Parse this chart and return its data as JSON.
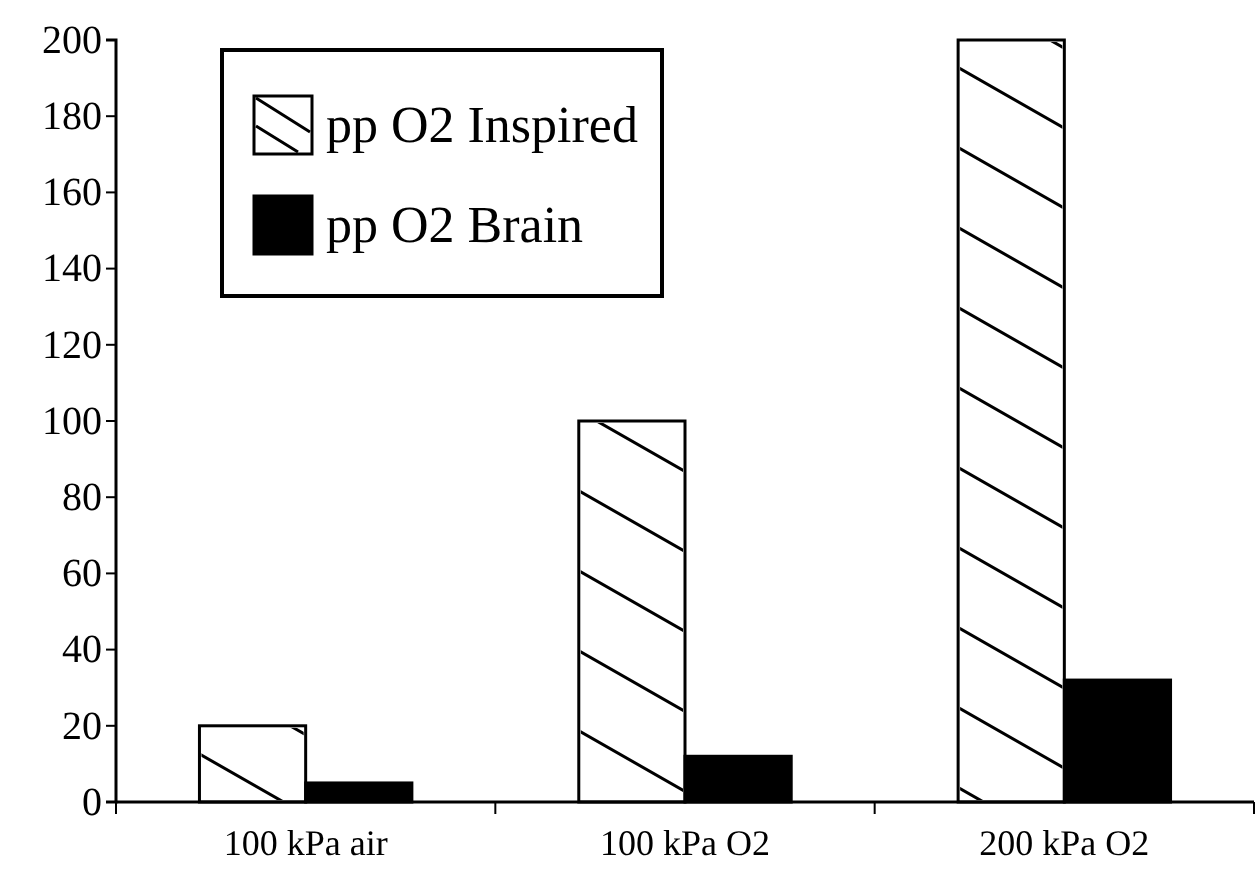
{
  "chart_data": {
    "type": "bar",
    "categories": [
      "100 kPa air",
      "100 kPa O2",
      "200 kPa O2"
    ],
    "series": [
      {
        "name": "pp O2 Inspired",
        "color": "#ffffff",
        "values": [
          20,
          100,
          200
        ]
      },
      {
        "name": "pp O2 Brain",
        "color": "#000000",
        "values": [
          5,
          12,
          32
        ]
      }
    ],
    "ylim": [
      0,
      200
    ],
    "yticks": [
      0,
      20,
      40,
      60,
      80,
      100,
      120,
      140,
      160,
      180,
      200
    ],
    "grid": false,
    "legend": "top left"
  }
}
